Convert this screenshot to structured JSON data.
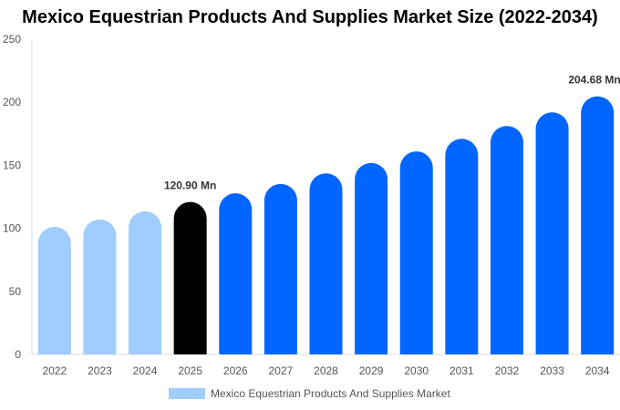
{
  "chart_data": {
    "type": "bar",
    "title": "Mexico Equestrian Products And Supplies Market Size (2022-2034)",
    "categories": [
      "2022",
      "2023",
      "2024",
      "2025",
      "2026",
      "2027",
      "2028",
      "2029",
      "2030",
      "2031",
      "2032",
      "2033",
      "2034"
    ],
    "series": [
      {
        "name": "Mexico Equestrian Products And Supplies Market",
        "values": [
          101.2,
          107.0,
          113.5,
          120.9,
          127.8,
          135.2,
          143.6,
          151.8,
          161.0,
          171.0,
          181.2,
          192.0,
          204.68
        ]
      }
    ],
    "data_labels": {
      "3": "120.90 Mn",
      "12": "204.68 Mn"
    },
    "ylim": [
      0,
      250
    ],
    "yticks": [
      0,
      50,
      100,
      150,
      200,
      250
    ],
    "xlabel": "",
    "ylabel": "",
    "grid": false,
    "legend_position": "bottom",
    "colors": {
      "historic": "#9fcdfd",
      "base_year": "#000000",
      "forecast": "#0066ff"
    }
  }
}
